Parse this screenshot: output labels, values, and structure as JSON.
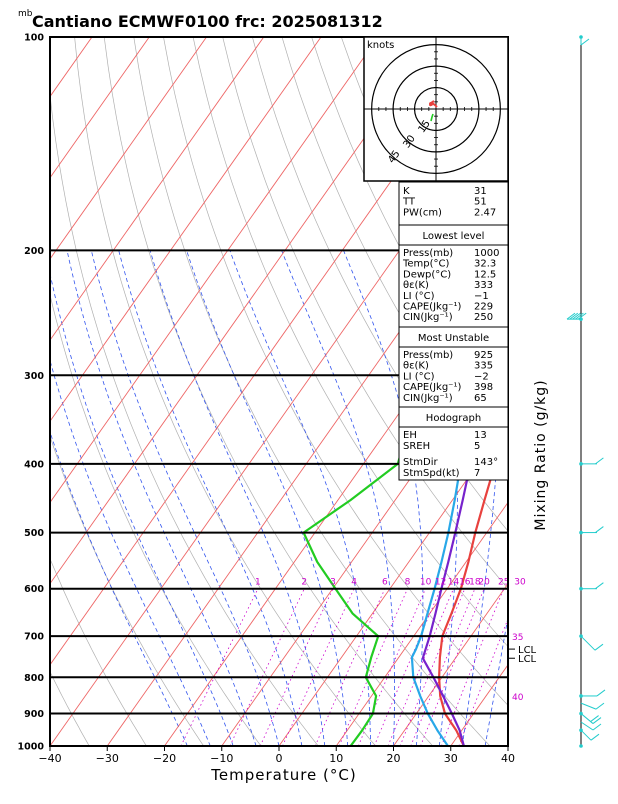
{
  "chart_data": {
    "type": "line",
    "title": "Cantiano ECMWF0100 frc: 2025081312",
    "pressure_unit": "mb",
    "xlabel": "Temperature (°C)",
    "side_label": "Mixing Ratio (g/kg)",
    "x_ticks": [
      -40,
      -30,
      -20,
      -10,
      0,
      10,
      20,
      30,
      40
    ],
    "xlim": [
      -40,
      40
    ],
    "pressure_levels": [
      100,
      200,
      300,
      400,
      500,
      600,
      700,
      800,
      900,
      1000
    ],
    "pressure_range": [
      100,
      1000
    ],
    "log_pressure_axis": true,
    "mixing_ratio_labels": [
      "1",
      "2",
      "3",
      "4",
      "6",
      "8",
      "10",
      "12",
      "14",
      "16",
      "18",
      "20",
      "25",
      "30"
    ],
    "mixing_ratio_values": [
      1,
      2,
      3,
      4,
      6,
      8,
      10,
      12,
      14,
      16,
      18,
      20,
      25,
      30
    ],
    "theta_e_labels": [
      {
        "text": "35",
        "pressure": 700
      },
      {
        "text": "40",
        "pressure": 850
      }
    ],
    "lcl_labels": [
      {
        "text": "LCL",
        "pressure": 730
      },
      {
        "text": "LCL",
        "pressure": 752
      }
    ],
    "series": [
      {
        "color": "#e8413e",
        "points": [
          [
            1000,
            32.3
          ],
          [
            950,
            29.0
          ],
          [
            900,
            25.0
          ],
          [
            850,
            22.0
          ],
          [
            800,
            19.5
          ],
          [
            750,
            17.2
          ],
          [
            700,
            15.0
          ],
          [
            650,
            13.8
          ],
          [
            600,
            12.4
          ],
          [
            550,
            10.4
          ],
          [
            500,
            8.0
          ],
          [
            450,
            5.6
          ],
          [
            400,
            3.0
          ],
          [
            350,
            1.8
          ],
          [
            300,
            0.4
          ],
          [
            250,
            -0.6
          ],
          [
            200,
            1.2
          ],
          [
            150,
            4.8
          ],
          [
            100,
            8.5
          ]
        ]
      },
      {
        "color": "#22cc22",
        "points": [
          [
            1000,
            12.5
          ],
          [
            950,
            12.6
          ],
          [
            900,
            12.4
          ],
          [
            850,
            10.8
          ],
          [
            800,
            6.7
          ],
          [
            750,
            5.2
          ],
          [
            700,
            3.8
          ],
          [
            650,
            -3.5
          ],
          [
            600,
            -9.5
          ],
          [
            550,
            -16.0
          ],
          [
            500,
            -22.0
          ],
          [
            450,
            -17.8
          ],
          [
            400,
            -14.0
          ],
          [
            350,
            -17.0
          ],
          [
            300,
            -20.8
          ],
          [
            250,
            -24.5
          ],
          [
            200,
            -21.5
          ],
          [
            150,
            -18.0
          ],
          [
            100,
            -13.5
          ]
        ]
      },
      {
        "color": "#28a8e8",
        "points": [
          [
            1000,
            29.5
          ],
          [
            950,
            25.7
          ],
          [
            900,
            22.0
          ],
          [
            850,
            18.5
          ],
          [
            800,
            15.0
          ],
          [
            750,
            12.3
          ],
          [
            730,
            12.0
          ],
          [
            700,
            11.3
          ],
          [
            650,
            9.6
          ],
          [
            600,
            7.8
          ],
          [
            550,
            5.7
          ],
          [
            500,
            3.3
          ],
          [
            450,
            0.4
          ],
          [
            400,
            -3.0
          ],
          [
            350,
            -7.0
          ],
          [
            300,
            -12.0
          ],
          [
            250,
            -18.0
          ],
          [
            200,
            -26.0
          ],
          [
            150,
            -36.0
          ],
          [
            100,
            -50.0
          ]
        ]
      },
      {
        "color": "#7722cc",
        "points": [
          [
            1000,
            32.3
          ],
          [
            950,
            29.6
          ],
          [
            900,
            26.2
          ],
          [
            850,
            22.5
          ],
          [
            800,
            18.5
          ],
          [
            752,
            14.3
          ],
          [
            700,
            12.8
          ],
          [
            650,
            11.0
          ],
          [
            600,
            9.0
          ],
          [
            550,
            6.9
          ],
          [
            500,
            4.5
          ],
          [
            450,
            1.8
          ],
          [
            400,
            -1.3
          ],
          [
            350,
            -5.1
          ],
          [
            300,
            -10.0
          ],
          [
            250,
            -16.0
          ],
          [
            200,
            -24.0
          ],
          [
            150,
            -34.0
          ],
          [
            100,
            -47.0
          ]
        ]
      }
    ]
  },
  "indices": {
    "block1": [
      {
        "label": "K",
        "value": "31"
      },
      {
        "label": "TT",
        "value": "51"
      },
      {
        "label": "PW(cm)",
        "value": "2.47"
      }
    ],
    "lowest_title": "Lowest level",
    "lowest": [
      {
        "label": "Press(mb)",
        "value": "1000"
      },
      {
        "label": "Temp(°C)",
        "value": "32.3"
      },
      {
        "label": "Dewp(°C)",
        "value": "12.5"
      },
      {
        "label": "θε(K)",
        "value": "333"
      },
      {
        "label": "LI (°C)",
        "value": "−1"
      },
      {
        "label": "CAPE(Jkg⁻¹)",
        "value": "229"
      },
      {
        "label": "CIN(Jkg⁻¹)",
        "value": "250"
      }
    ],
    "unstable_title": "Most Unstable",
    "unstable": [
      {
        "label": "Press(mb)",
        "value": "925"
      },
      {
        "label": "θε(K)",
        "value": "335"
      },
      {
        "label": "LI (°C)",
        "value": "−2"
      },
      {
        "label": "CAPE(Jkg⁻¹)",
        "value": "398"
      },
      {
        "label": "CIN(Jkg⁻¹)",
        "value": "65"
      }
    ],
    "hodo_title": "Hodograph",
    "hodo": [
      {
        "label": "EH",
        "value": "13"
      },
      {
        "label": "SREH",
        "value": "5"
      },
      {
        "label": "StmDir",
        "value": "143°"
      },
      {
        "label": "StmSpd(kt)",
        "value": "7"
      }
    ]
  },
  "hodograph": {
    "unit": "knots",
    "ring_labels": [
      "15",
      "30",
      "45"
    ],
    "ring_values": [
      15,
      30,
      45
    ]
  },
  "colors": {
    "temperature": "#e8413e",
    "dewpoint": "#22cc22",
    "parcel": "#28a8e8",
    "virtual": "#7722cc",
    "isotherm": "#ee6666",
    "dry_adiabat": "#b0b0b0",
    "moist_adiabat": "#3355ee",
    "mixing_ratio": "#cc00cc",
    "wind": "#22cccc"
  }
}
